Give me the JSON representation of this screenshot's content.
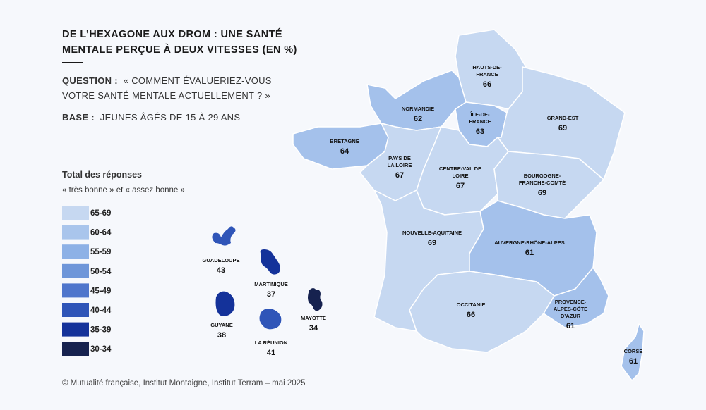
{
  "header": {
    "title": [
      "DE L’HEXAGONE AUX DROM : UNE SANTÉ",
      "MENTALE PERÇUE À DEUX VITESSES (EN %)"
    ],
    "question": {
      "label": "QUESTION :",
      "lines": [
        "« COMMENT ÉVALUERIEZ-VOUS",
        "VOTRE SANTÉ MENTALE ACTUELLEMENT ? »"
      ]
    },
    "base": {
      "label": "BASE :",
      "text": "JEUNES ÂGÉS DE 15 À 29 ANS"
    }
  },
  "legend": {
    "title": "Total des réponses",
    "subtitle": "« très bonne » et « assez bonne »",
    "bins": [
      {
        "label": "65-69",
        "color": "#c6d8f1"
      },
      {
        "label": "60-64",
        "color": "#a9c5ec"
      },
      {
        "label": "55-59",
        "color": "#8db1e6"
      },
      {
        "label": "50-54",
        "color": "#6e96d9"
      },
      {
        "label": "45-49",
        "color": "#4f76cc"
      },
      {
        "label": "40-44",
        "color": "#2f55b8"
      },
      {
        "label": "35-39",
        "color": "#14329a"
      },
      {
        "label": "30-34",
        "color": "#16224f"
      }
    ]
  },
  "regions": [
    {
      "name": [
        "HAUTS-DE-",
        "FRANCE"
      ],
      "value": 66,
      "color": "#c6d8f1"
    },
    {
      "name": [
        "NORMANDIE"
      ],
      "value": 62,
      "color": "#a4c1eb"
    },
    {
      "name": [
        "ÎLE-DE-",
        "FRANCE"
      ],
      "value": 63,
      "color": "#a4c1eb"
    },
    {
      "name": [
        "GRAND-EST"
      ],
      "value": 69,
      "color": "#c6d8f1"
    },
    {
      "name": [
        "BRETAGNE"
      ],
      "value": 64,
      "color": "#a4c1eb"
    },
    {
      "name": [
        "PAYS DE",
        "LA LOIRE"
      ],
      "value": 67,
      "color": "#c6d8f1"
    },
    {
      "name": [
        "CENTRE-VAL DE",
        "LOIRE"
      ],
      "value": 67,
      "color": "#c6d8f1"
    },
    {
      "name": [
        "BOURGOGNE-",
        "FRANCHE-COMTÉ"
      ],
      "value": 69,
      "color": "#c6d8f1"
    },
    {
      "name": [
        "NOUVELLE-AQUITAINE"
      ],
      "value": 69,
      "color": "#c6d8f1"
    },
    {
      "name": [
        "AUVERGNE-RHÔNE-ALPES"
      ],
      "value": 61,
      "color": "#a4c1eb"
    },
    {
      "name": [
        "OCCITANIE"
      ],
      "value": 66,
      "color": "#c6d8f1"
    },
    {
      "name": [
        "PROVENCE-",
        "ALPES-CÔTE",
        "D’AZUR"
      ],
      "value": 61,
      "color": "#a4c1eb"
    },
    {
      "name": [
        "CORSE"
      ],
      "value": 61,
      "color": "#a4c1eb"
    }
  ],
  "overseas": [
    {
      "name": [
        "GUADELOUPE"
      ],
      "value": 43,
      "color": "#2f55b8"
    },
    {
      "name": [
        "MARTINIQUE"
      ],
      "value": 37,
      "color": "#14329a"
    },
    {
      "name": [
        "GUYANE"
      ],
      "value": 38,
      "color": "#14329a"
    },
    {
      "name": [
        "LA RÉUNION"
      ],
      "value": 41,
      "color": "#2f55b8"
    },
    {
      "name": [
        "MAYOTTE"
      ],
      "value": 34,
      "color": "#16224f"
    }
  ],
  "source": "© Mutualité française, Institut Montaigne, Institut Terram – mai 2025"
}
